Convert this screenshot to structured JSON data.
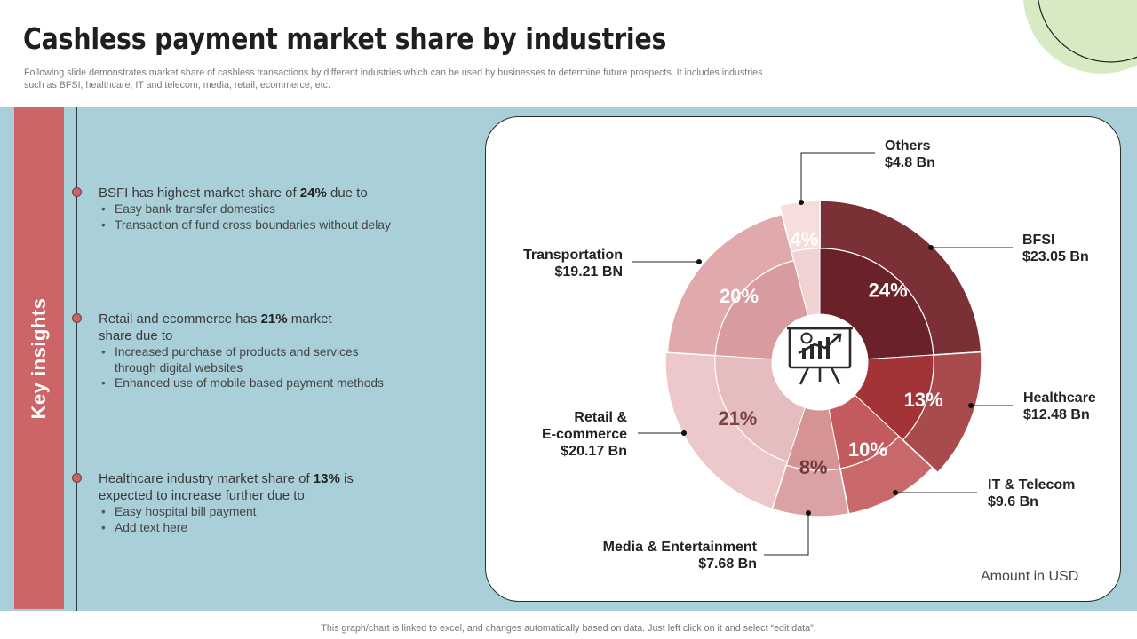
{
  "header": {
    "title": "Cashless payment market share by industries",
    "subtitle_line1": "Following slide demonstrates market share of cashless transactions by different industries which can be used by businesses to determine future prospects. It includes industries",
    "subtitle_line2": "such as BFSI,  healthcare, IT and telecom, media, retail, ecommerce, etc."
  },
  "sidebar": {
    "label": "Key insights"
  },
  "insights": [
    {
      "pre": "BSFI has highest market share of ",
      "bold": "24%",
      "post": " due to",
      "bullets": [
        "Easy bank transfer domestics",
        "Transaction of fund cross boundaries without delay"
      ]
    },
    {
      "pre": "Retail and ecommerce has ",
      "bold": "21%",
      "post": " market share due to",
      "bullets": [
        "Increased purchase of products and services through digital websites",
        "Enhanced use of mobile based payment methods"
      ]
    },
    {
      "pre": "Healthcare industry  market share of ",
      "bold": "13%",
      "post": " is expected to increase further due to",
      "bullets": [
        "Easy hospital bill payment",
        "Add text here"
      ]
    }
  ],
  "chart_data": {
    "type": "pie",
    "variant": "variable-radius doughnut",
    "unit_note": "Amount in USD",
    "center_icon": "presentation-chart-icon",
    "series": [
      {
        "name": "BFSI",
        "percent": 24,
        "pct_label": "24%",
        "amount": 23.05,
        "amount_label": "$23.05 Bn",
        "color": "#7a3035",
        "inner_color": "#6a2228"
      },
      {
        "name": "Healthcare",
        "percent": 13,
        "pct_label": "13%",
        "amount": 12.48,
        "amount_label": "$12.48 Bn",
        "color": "#a94a4d",
        "inner_color": "#a23438"
      },
      {
        "name": "IT & Telecom",
        "percent": 10,
        "pct_label": "10%",
        "amount": 9.6,
        "amount_label": "$9.6 Bn",
        "color": "#c8686b",
        "inner_color": "#c25a5e"
      },
      {
        "name": "Media & Entertainment",
        "percent": 8,
        "pct_label": "8%",
        "amount": 7.68,
        "amount_label": "$7.68 Bn",
        "color": "#dba2a4",
        "inner_color": "#d59396"
      },
      {
        "name": "Retail & E-commerce",
        "name_lines": [
          "Retail &",
          "E-commerce"
        ],
        "percent": 21,
        "pct_label": "21%",
        "amount": 20.17,
        "amount_label": "$20.17 Bn",
        "color": "#ecc8ca",
        "inner_color": "#e6bdbf"
      },
      {
        "name": "Transportation",
        "percent": 20,
        "pct_label": "20%",
        "amount": 19.21,
        "amount_label": "$19.21 BN",
        "color": "#e0aaac",
        "inner_color": "#d89c9e"
      },
      {
        "name": "Others",
        "percent": 4,
        "pct_label": "4%",
        "amount": 4.8,
        "amount_label": "$4.8 Bn",
        "color": "#f6dedf",
        "inner_color": "#f1d3d4"
      }
    ]
  },
  "footer": {
    "text": "This graph/chart is linked to excel,  and changes automatically based on data. Just left click on it and select “edit data”."
  }
}
